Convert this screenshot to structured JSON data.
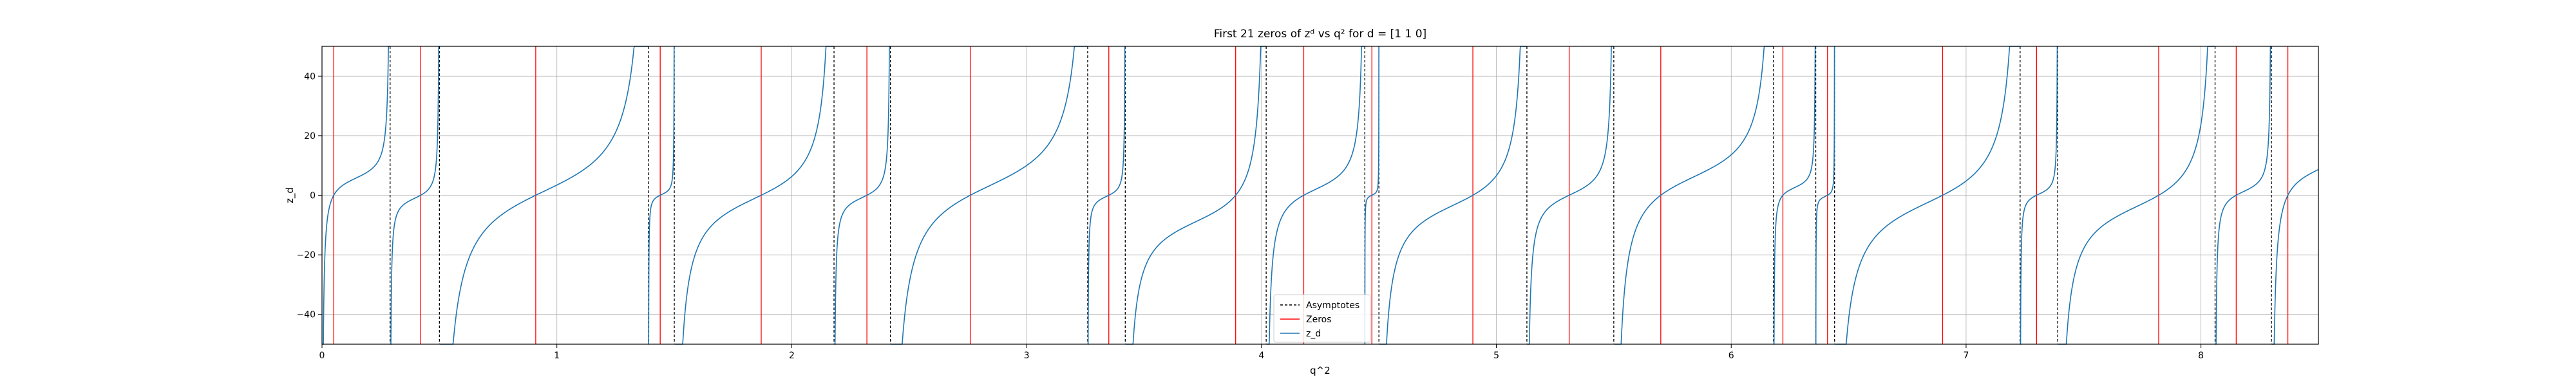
{
  "chart_data": {
    "type": "line",
    "title": "First 21 zeros of zᵈ vs q² for d = [1 1 0]",
    "xlabel": "q^2",
    "ylabel": "z_d",
    "xlim": [
      0,
      8.5
    ],
    "ylim": [
      -50,
      50
    ],
    "xticks": [
      0,
      1,
      2,
      3,
      4,
      5,
      6,
      7,
      8
    ],
    "yticks": [
      -40,
      -20,
      0,
      20,
      40
    ],
    "grid": true,
    "legend_position": "bottom-center",
    "legend": [
      {
        "label": "Asymptotes",
        "style": "dashed",
        "color": "#000000"
      },
      {
        "label": "Zeros",
        "style": "solid",
        "color": "#ff0000"
      },
      {
        "label": "z_d",
        "style": "solid",
        "color": "#1f77b4"
      }
    ],
    "asymptotes": [
      0.0,
      0.29,
      0.5,
      1.39,
      1.5,
      2.18,
      2.42,
      3.26,
      3.42,
      4.02,
      4.44,
      4.5,
      5.13,
      5.5,
      6.18,
      6.36,
      6.44,
      7.23,
      7.39,
      8.06,
      8.3
    ],
    "zeros": [
      0.05,
      0.42,
      0.91,
      1.44,
      1.87,
      2.32,
      2.76,
      3.35,
      3.89,
      4.18,
      4.47,
      4.9,
      5.31,
      5.7,
      6.22,
      6.41,
      6.9,
      7.3,
      7.82,
      8.15,
      8.37
    ],
    "series": [
      {
        "name": "z_d",
        "color": "#1f77b4"
      }
    ]
  }
}
